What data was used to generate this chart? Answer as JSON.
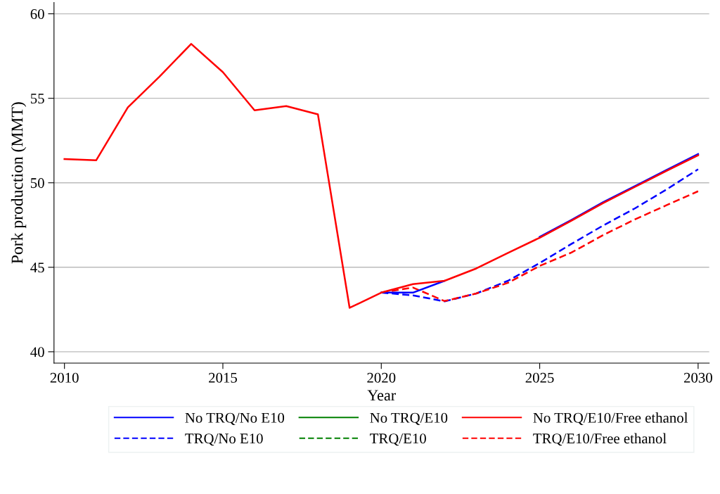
{
  "chart_data": {
    "type": "line",
    "xlabel": "Year",
    "ylabel": "Pork production (MMT)",
    "x": [
      2010,
      2011,
      2012,
      2013,
      2014,
      2015,
      2016,
      2017,
      2018,
      2019,
      2020,
      2021,
      2022,
      2023,
      2024,
      2025,
      2026,
      2027,
      2028,
      2029,
      2030
    ],
    "series": [
      {
        "name": "No TRQ/No E10",
        "color": "#0000ff",
        "line_style": "solid",
        "values": [
          null,
          null,
          null,
          null,
          null,
          null,
          null,
          null,
          null,
          null,
          43.5,
          43.5,
          44.2,
          null,
          null,
          46.8,
          47.8,
          48.85,
          49.8,
          50.75,
          51.7
        ]
      },
      {
        "name": "No TRQ/E10",
        "color": "#008000",
        "line_style": "solid",
        "values": [
          null,
          null,
          null,
          null,
          null,
          null,
          null,
          null,
          null,
          null,
          null,
          null,
          null,
          null,
          null,
          null,
          null,
          null,
          null,
          null,
          null
        ]
      },
      {
        "name": "No TRQ/E10/Free ethanol",
        "color": "#ff0000",
        "line_style": "solid",
        "values": [
          51.4,
          51.33,
          54.46,
          56.28,
          58.22,
          56.55,
          54.29,
          54.54,
          54.05,
          42.6,
          43.5,
          44.0,
          44.2,
          44.93,
          45.85,
          46.75,
          47.76,
          48.8,
          49.75,
          50.7,
          51.63
        ]
      },
      {
        "name": "TRQ/No E10",
        "color": "#0000ff",
        "line_style": "dashed",
        "values": [
          null,
          null,
          null,
          null,
          null,
          null,
          null,
          null,
          null,
          null,
          43.5,
          43.34,
          42.98,
          43.45,
          44.2,
          45.25,
          46.38,
          47.47,
          48.48,
          49.6,
          50.8
        ]
      },
      {
        "name": "TRQ/E10",
        "color": "#008000",
        "line_style": "dashed",
        "values": [
          null,
          null,
          null,
          null,
          null,
          null,
          null,
          null,
          null,
          null,
          null,
          null,
          null,
          null,
          null,
          null,
          null,
          null,
          null,
          null,
          null
        ]
      },
      {
        "name": "TRQ/E10/Free ethanol",
        "color": "#ff0000",
        "line_style": "dashed",
        "values": [
          null,
          null,
          null,
          null,
          null,
          null,
          null,
          null,
          null,
          null,
          43.5,
          43.8,
          43.0,
          43.45,
          44.08,
          45.08,
          45.87,
          46.9,
          47.83,
          48.67,
          49.5
        ]
      }
    ],
    "xlim": [
      2009.67,
      2030.35
    ],
    "ylim": [
      39.33,
      60.67
    ],
    "xticks": [
      2010,
      2015,
      2020,
      2025,
      2030
    ],
    "yticks": [
      40,
      45,
      50,
      55,
      60
    ],
    "grid": "y",
    "legend": "bottom",
    "marker": "none"
  }
}
